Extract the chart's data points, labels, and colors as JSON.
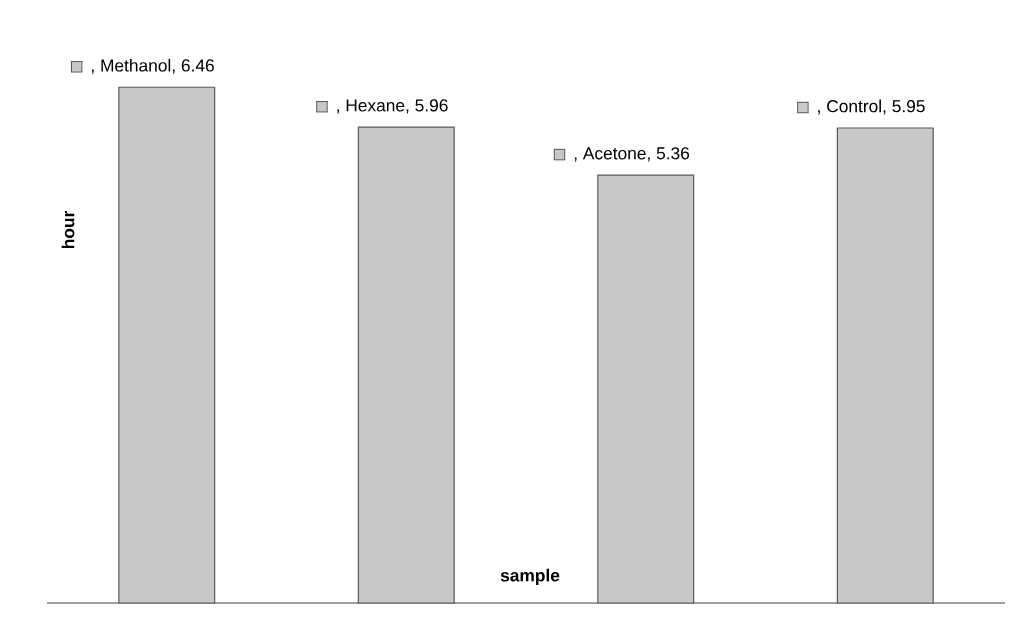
{
  "chart_data": {
    "type": "bar",
    "xlabel": "sample",
    "ylabel": "hour",
    "categories": [
      null,
      null,
      null,
      null
    ],
    "values": [
      6.46,
      5.96,
      5.36,
      5.95
    ],
    "value_labels": [
      ", Methanol, 6.46",
      ", Hexane, 5.96",
      ", Acetone, 5.36",
      ", Control, 5.95"
    ],
    "color": "#c8c8c8"
  }
}
